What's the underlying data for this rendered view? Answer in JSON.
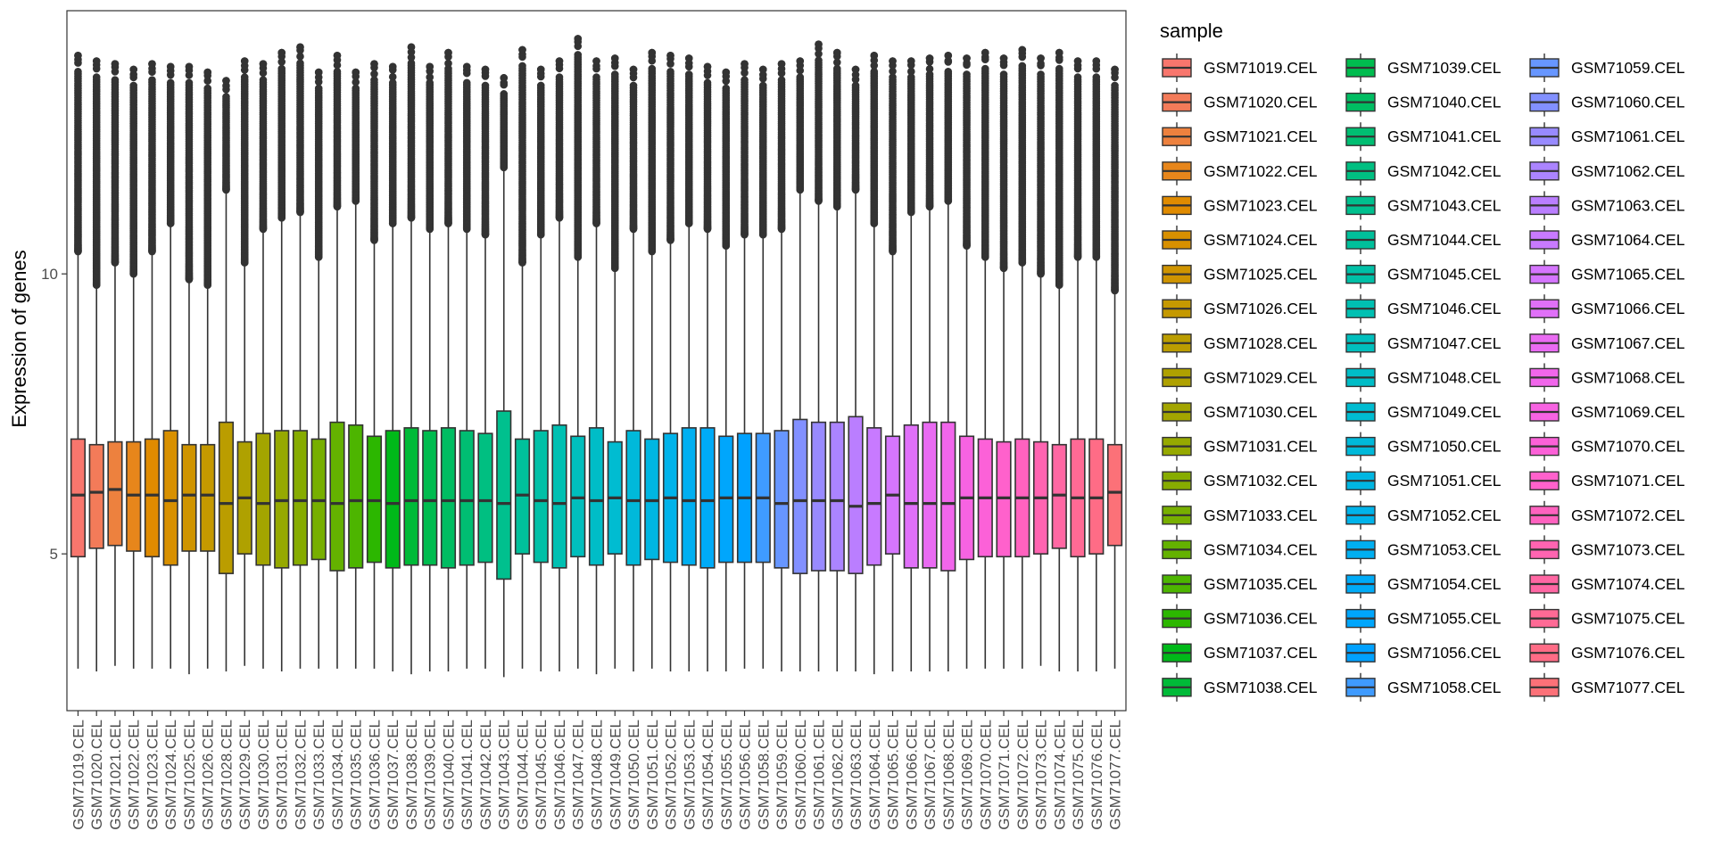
{
  "chart_data": {
    "type": "boxplot",
    "title": "",
    "xlabel": "",
    "ylabel": "Expression of genes",
    "ylim": [
      2.2,
      14.7
    ],
    "yticks": [
      5,
      10
    ],
    "legend_title": "sample",
    "legend_position": "right",
    "samples": [
      {
        "name": "GSM71019.CEL",
        "color": "#F8766D",
        "whisker_low": 2.95,
        "q1": 4.95,
        "median": 6.05,
        "q3": 7.05,
        "whisker_high": 10.4,
        "max": 13.9
      },
      {
        "name": "GSM71020.CEL",
        "color": "#F37B59",
        "whisker_low": 2.9,
        "q1": 5.1,
        "median": 6.1,
        "q3": 6.95,
        "whisker_high": 9.8,
        "max": 13.8
      },
      {
        "name": "GSM71021.CEL",
        "color": "#ED813E",
        "whisker_low": 3.0,
        "q1": 5.15,
        "median": 6.15,
        "q3": 7.0,
        "whisker_high": 10.2,
        "max": 13.75
      },
      {
        "name": "GSM71022.CEL",
        "color": "#E7861B",
        "whisker_low": 2.95,
        "q1": 5.05,
        "median": 6.05,
        "q3": 7.0,
        "whisker_high": 10.0,
        "max": 13.65
      },
      {
        "name": "GSM71023.CEL",
        "color": "#E08B00",
        "whisker_low": 2.95,
        "q1": 4.95,
        "median": 6.05,
        "q3": 7.05,
        "whisker_high": 10.4,
        "max": 13.75
      },
      {
        "name": "GSM71024.CEL",
        "color": "#D89000",
        "whisker_low": 2.95,
        "q1": 4.8,
        "median": 5.95,
        "q3": 7.2,
        "whisker_high": 10.9,
        "max": 13.7
      },
      {
        "name": "GSM71025.CEL",
        "color": "#CF9400",
        "whisker_low": 2.85,
        "q1": 5.05,
        "median": 6.05,
        "q3": 6.95,
        "whisker_high": 9.9,
        "max": 13.7
      },
      {
        "name": "GSM71026.CEL",
        "color": "#C59900",
        "whisker_low": 2.95,
        "q1": 5.05,
        "median": 6.05,
        "q3": 6.95,
        "whisker_high": 9.8,
        "max": 13.6
      },
      {
        "name": "GSM71028.CEL",
        "color": "#BB9D00",
        "whisker_low": 2.9,
        "q1": 4.65,
        "median": 5.9,
        "q3": 7.35,
        "whisker_high": 11.5,
        "max": 13.45
      },
      {
        "name": "GSM71029.CEL",
        "color": "#AFA100",
        "whisker_low": 3.0,
        "q1": 5.0,
        "median": 6.0,
        "q3": 7.0,
        "whisker_high": 10.2,
        "max": 13.8
      },
      {
        "name": "GSM71030.CEL",
        "color": "#A3A500",
        "whisker_low": 2.95,
        "q1": 4.8,
        "median": 5.9,
        "q3": 7.15,
        "whisker_high": 10.8,
        "max": 13.75
      },
      {
        "name": "GSM71031.CEL",
        "color": "#96A900",
        "whisker_low": 2.9,
        "q1": 4.75,
        "median": 5.95,
        "q3": 7.2,
        "whisker_high": 11.0,
        "max": 13.95
      },
      {
        "name": "GSM71032.CEL",
        "color": "#87AC00",
        "whisker_low": 2.95,
        "q1": 4.8,
        "median": 5.95,
        "q3": 7.2,
        "whisker_high": 11.1,
        "max": 14.05
      },
      {
        "name": "GSM71033.CEL",
        "color": "#77AF00",
        "whisker_low": 2.95,
        "q1": 4.9,
        "median": 5.95,
        "q3": 7.05,
        "whisker_high": 10.3,
        "max": 13.6
      },
      {
        "name": "GSM71034.CEL",
        "color": "#64B200",
        "whisker_low": 2.95,
        "q1": 4.7,
        "median": 5.9,
        "q3": 7.35,
        "whisker_high": 11.2,
        "max": 13.9
      },
      {
        "name": "GSM71035.CEL",
        "color": "#4DB500",
        "whisker_low": 2.95,
        "q1": 4.75,
        "median": 5.95,
        "q3": 7.3,
        "whisker_high": 11.3,
        "max": 13.6
      },
      {
        "name": "GSM71036.CEL",
        "color": "#2CB700",
        "whisker_low": 2.95,
        "q1": 4.85,
        "median": 5.95,
        "q3": 7.1,
        "whisker_high": 10.6,
        "max": 13.75
      },
      {
        "name": "GSM71037.CEL",
        "color": "#00B919",
        "whisker_low": 2.9,
        "q1": 4.75,
        "median": 5.9,
        "q3": 7.2,
        "whisker_high": 10.9,
        "max": 13.7
      },
      {
        "name": "GSM71038.CEL",
        "color": "#00BA38",
        "whisker_low": 2.85,
        "q1": 4.8,
        "median": 5.95,
        "q3": 7.25,
        "whisker_high": 11.0,
        "max": 14.05
      },
      {
        "name": "GSM71039.CEL",
        "color": "#00BC4F",
        "whisker_low": 2.9,
        "q1": 4.8,
        "median": 5.95,
        "q3": 7.2,
        "whisker_high": 10.8,
        "max": 13.7
      },
      {
        "name": "GSM71040.CEL",
        "color": "#00BD62",
        "whisker_low": 2.9,
        "q1": 4.75,
        "median": 5.95,
        "q3": 7.25,
        "whisker_high": 10.9,
        "max": 13.95
      },
      {
        "name": "GSM71041.CEL",
        "color": "#00BE72",
        "whisker_low": 2.95,
        "q1": 4.8,
        "median": 5.95,
        "q3": 7.2,
        "whisker_high": 10.8,
        "max": 13.7
      },
      {
        "name": "GSM71042.CEL",
        "color": "#00BF81",
        "whisker_low": 2.95,
        "q1": 4.85,
        "median": 5.95,
        "q3": 7.15,
        "whisker_high": 10.7,
        "max": 13.65
      },
      {
        "name": "GSM71043.CEL",
        "color": "#00C08E",
        "whisker_low": 2.8,
        "q1": 4.55,
        "median": 5.9,
        "q3": 7.55,
        "whisker_high": 11.9,
        "max": 13.5
      },
      {
        "name": "GSM71044.CEL",
        "color": "#00C09B",
        "whisker_low": 2.95,
        "q1": 5.0,
        "median": 6.05,
        "q3": 7.05,
        "whisker_high": 10.2,
        "max": 14.0
      },
      {
        "name": "GSM71045.CEL",
        "color": "#00C0A7",
        "whisker_low": 2.9,
        "q1": 4.85,
        "median": 5.95,
        "q3": 7.2,
        "whisker_high": 10.7,
        "max": 13.65
      },
      {
        "name": "GSM71046.CEL",
        "color": "#00C0B2",
        "whisker_low": 2.9,
        "q1": 4.75,
        "median": 5.9,
        "q3": 7.3,
        "whisker_high": 11.0,
        "max": 13.8
      },
      {
        "name": "GSM71047.CEL",
        "color": "#00BFBD",
        "whisker_low": 2.95,
        "q1": 4.95,
        "median": 6.0,
        "q3": 7.1,
        "whisker_high": 10.3,
        "max": 14.2
      },
      {
        "name": "GSM71048.CEL",
        "color": "#00BDC7",
        "whisker_low": 2.85,
        "q1": 4.8,
        "median": 5.95,
        "q3": 7.25,
        "whisker_high": 10.9,
        "max": 13.8
      },
      {
        "name": "GSM71049.CEL",
        "color": "#00BCD1",
        "whisker_low": 2.95,
        "q1": 5.0,
        "median": 6.0,
        "q3": 7.0,
        "whisker_high": 10.1,
        "max": 13.85
      },
      {
        "name": "GSM71050.CEL",
        "color": "#00B9DA",
        "whisker_low": 2.9,
        "q1": 4.8,
        "median": 5.95,
        "q3": 7.2,
        "whisker_high": 10.8,
        "max": 13.65
      },
      {
        "name": "GSM71051.CEL",
        "color": "#00B6E2",
        "whisker_low": 2.95,
        "q1": 4.9,
        "median": 5.95,
        "q3": 7.05,
        "whisker_high": 10.4,
        "max": 13.95
      },
      {
        "name": "GSM71052.CEL",
        "color": "#00B3EA",
        "whisker_low": 2.9,
        "q1": 4.85,
        "median": 6.0,
        "q3": 7.15,
        "whisker_high": 10.6,
        "max": 13.9
      },
      {
        "name": "GSM71053.CEL",
        "color": "#00AFF1",
        "whisker_low": 2.9,
        "q1": 4.8,
        "median": 5.95,
        "q3": 7.25,
        "whisker_high": 10.9,
        "max": 13.85
      },
      {
        "name": "GSM71054.CEL",
        "color": "#00ABF7",
        "whisker_low": 2.9,
        "q1": 4.75,
        "median": 5.95,
        "q3": 7.25,
        "whisker_high": 10.8,
        "max": 13.7
      },
      {
        "name": "GSM71055.CEL",
        "color": "#00A6FC",
        "whisker_low": 2.9,
        "q1": 4.85,
        "median": 6.0,
        "q3": 7.1,
        "whisker_high": 10.5,
        "max": 13.6
      },
      {
        "name": "GSM71056.CEL",
        "color": "#00A1FF",
        "whisker_low": 2.95,
        "q1": 4.85,
        "median": 6.0,
        "q3": 7.15,
        "whisker_high": 10.7,
        "max": 13.75
      },
      {
        "name": "GSM71058.CEL",
        "color": "#3F9BFF",
        "whisker_low": 2.95,
        "q1": 4.85,
        "median": 6.0,
        "q3": 7.15,
        "whisker_high": 10.7,
        "max": 13.65
      },
      {
        "name": "GSM71059.CEL",
        "color": "#6796FF",
        "whisker_low": 2.9,
        "q1": 4.75,
        "median": 5.9,
        "q3": 7.2,
        "whisker_high": 10.8,
        "max": 13.75
      },
      {
        "name": "GSM71060.CEL",
        "color": "#8290FF",
        "whisker_low": 2.9,
        "q1": 4.65,
        "median": 5.95,
        "q3": 7.4,
        "whisker_high": 11.5,
        "max": 13.8
      },
      {
        "name": "GSM71061.CEL",
        "color": "#988AFF",
        "whisker_low": 2.9,
        "q1": 4.7,
        "median": 5.95,
        "q3": 7.35,
        "whisker_high": 11.3,
        "max": 14.1
      },
      {
        "name": "GSM71062.CEL",
        "color": "#AB84FF",
        "whisker_low": 2.9,
        "q1": 4.7,
        "median": 5.95,
        "q3": 7.35,
        "whisker_high": 11.2,
        "max": 13.95
      },
      {
        "name": "GSM71063.CEL",
        "color": "#BA7EFF",
        "whisker_low": 2.9,
        "q1": 4.65,
        "median": 5.85,
        "q3": 7.45,
        "whisker_high": 11.5,
        "max": 13.65
      },
      {
        "name": "GSM71064.CEL",
        "color": "#C87AFF",
        "whisker_low": 2.85,
        "q1": 4.8,
        "median": 5.9,
        "q3": 7.25,
        "whisker_high": 10.9,
        "max": 13.9
      },
      {
        "name": "GSM71065.CEL",
        "color": "#D575FE",
        "whisker_low": 2.9,
        "q1": 5.0,
        "median": 6.05,
        "q3": 7.1,
        "whisker_high": 10.4,
        "max": 13.8
      },
      {
        "name": "GSM71066.CEL",
        "color": "#E070F8",
        "whisker_low": 2.9,
        "q1": 4.75,
        "median": 5.9,
        "q3": 7.3,
        "whisker_high": 11.1,
        "max": 13.8
      },
      {
        "name": "GSM71067.CEL",
        "color": "#E96BF2",
        "whisker_low": 2.9,
        "q1": 4.75,
        "median": 5.9,
        "q3": 7.35,
        "whisker_high": 11.2,
        "max": 13.85
      },
      {
        "name": "GSM71068.CEL",
        "color": "#F166EB",
        "whisker_low": 2.9,
        "q1": 4.7,
        "median": 5.9,
        "q3": 7.35,
        "whisker_high": 11.3,
        "max": 13.9
      },
      {
        "name": "GSM71069.CEL",
        "color": "#F763E2",
        "whisker_low": 2.95,
        "q1": 4.9,
        "median": 6.0,
        "q3": 7.1,
        "whisker_high": 10.5,
        "max": 13.85
      },
      {
        "name": "GSM71070.CEL",
        "color": "#FC61D8",
        "whisker_low": 2.95,
        "q1": 4.95,
        "median": 6.0,
        "q3": 7.05,
        "whisker_high": 10.3,
        "max": 13.95
      },
      {
        "name": "GSM71071.CEL",
        "color": "#FF61CC",
        "whisker_low": 2.95,
        "q1": 4.95,
        "median": 6.0,
        "q3": 7.0,
        "whisker_high": 10.1,
        "max": 13.85
      },
      {
        "name": "GSM71072.CEL",
        "color": "#FF62BF",
        "whisker_low": 2.95,
        "q1": 4.95,
        "median": 6.0,
        "q3": 7.05,
        "whisker_high": 10.2,
        "max": 14.0
      },
      {
        "name": "GSM71073.CEL",
        "color": "#FF64B1",
        "whisker_low": 3.0,
        "q1": 5.0,
        "median": 6.0,
        "q3": 7.0,
        "whisker_high": 10.0,
        "max": 13.85
      },
      {
        "name": "GSM71074.CEL",
        "color": "#FF67A3",
        "whisker_low": 2.9,
        "q1": 5.1,
        "median": 6.05,
        "q3": 6.95,
        "whisker_high": 9.8,
        "max": 13.95
      },
      {
        "name": "GSM71075.CEL",
        "color": "#FF6A95",
        "whisker_low": 2.9,
        "q1": 4.95,
        "median": 6.0,
        "q3": 7.05,
        "whisker_high": 10.3,
        "max": 13.8
      },
      {
        "name": "GSM71076.CEL",
        "color": "#FF6C86",
        "whisker_low": 2.9,
        "q1": 5.0,
        "median": 6.0,
        "q3": 7.05,
        "whisker_high": 10.3,
        "max": 13.8
      },
      {
        "name": "GSM71077.CEL",
        "color": "#FC7178",
        "whisker_low": 2.95,
        "q1": 5.15,
        "median": 6.1,
        "q3": 6.95,
        "whisker_high": 9.7,
        "max": 13.65
      }
    ]
  }
}
